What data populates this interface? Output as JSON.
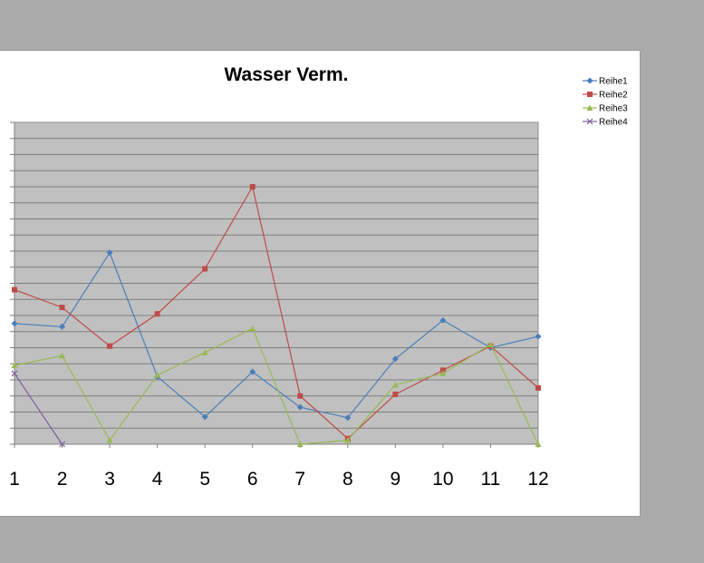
{
  "chart_data": {
    "type": "line",
    "title": "Wasser Verm.",
    "xlabel": "",
    "ylabel": "",
    "categories": [
      "1",
      "2",
      "3",
      "4",
      "5",
      "6",
      "7",
      "8",
      "9",
      "10",
      "11",
      "12"
    ],
    "ylim": [
      0,
      20
    ],
    "grid": true,
    "legend_position": "top-right",
    "series": [
      {
        "name": "Reihe1",
        "color": "#4a7ebb",
        "marker": "diamond",
        "values": [
          7.5,
          7.3,
          11.9,
          4.2,
          1.7,
          4.5,
          2.3,
          1.65,
          5.3,
          7.7,
          6.0,
          6.7
        ]
      },
      {
        "name": "Reihe2",
        "color": "#be4b48",
        "marker": "square",
        "values": [
          9.6,
          8.5,
          6.1,
          8.1,
          10.9,
          16.0,
          3.0,
          0.35,
          3.1,
          4.6,
          6.1,
          3.5
        ]
      },
      {
        "name": "Reihe3",
        "color": "#98b954",
        "marker": "triangle",
        "values": [
          4.9,
          5.5,
          0.25,
          4.3,
          5.7,
          7.2,
          0.0,
          0.25,
          3.7,
          4.4,
          6.2,
          0.0
        ]
      },
      {
        "name": "Reihe4",
        "color": "#7d60a0",
        "marker": "x",
        "values": [
          4.4,
          0.0,
          null,
          null,
          null,
          null,
          null,
          null,
          null,
          null,
          null,
          null
        ]
      }
    ]
  }
}
